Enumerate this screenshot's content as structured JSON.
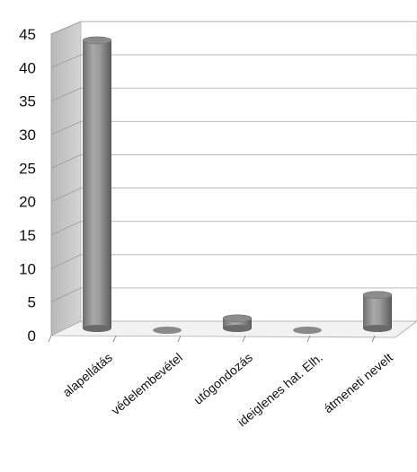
{
  "chart_data": {
    "type": "bar",
    "style": "3d-cylinder",
    "categories": [
      "alapellátás",
      "védelembevétel",
      "utógondozás",
      "ideiglenes hat. Elh.",
      "átmeneti nevelt"
    ],
    "values": [
      43,
      0,
      1.5,
      0,
      5
    ],
    "ylim": [
      0,
      45
    ],
    "yticks": [
      0,
      5,
      10,
      15,
      20,
      25,
      30,
      35,
      40,
      45
    ],
    "grid": true,
    "legend": "none",
    "colors": {
      "bar": "#8a8a8a",
      "grid": "#b8b8b8",
      "wall": "#ffffff",
      "side_wall": "#c4c4c4"
    }
  }
}
